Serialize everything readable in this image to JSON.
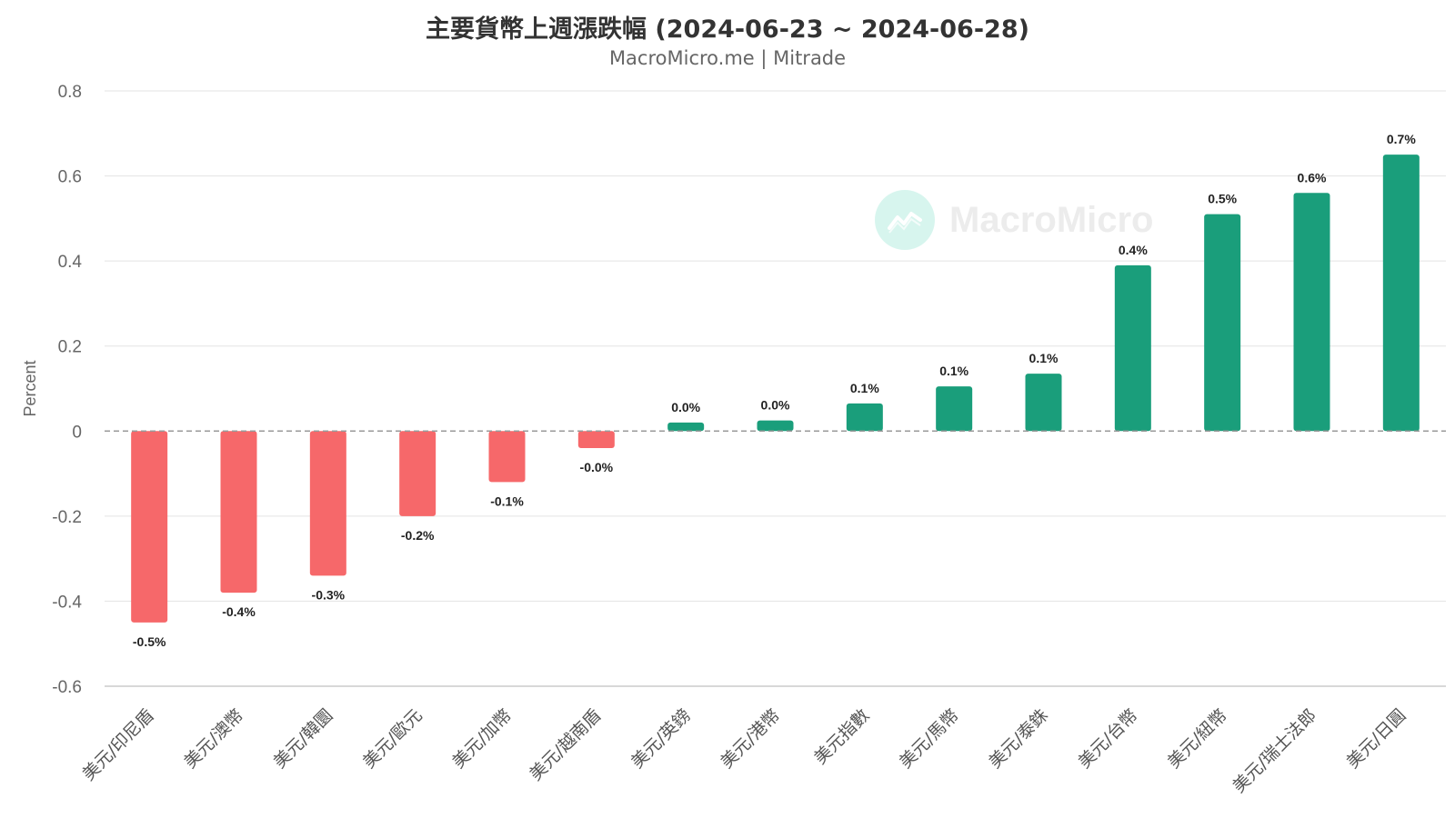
{
  "chart_data": {
    "type": "bar",
    "title": "主要貨幣上週漲跌幅 (2024-06-23 ~ 2024-06-28)",
    "subtitle": "MacroMicro.me | Mitrade",
    "ylabel": "Percent",
    "ylim": [
      -0.6,
      0.8
    ],
    "yticks": [
      0.8,
      0.6,
      0.4,
      0.2,
      0,
      -0.2,
      -0.4,
      -0.6
    ],
    "grid": true,
    "categories": [
      "美元/印尼盾",
      "美元/澳幣",
      "美元/韓圜",
      "美元/歐元",
      "美元/加幣",
      "美元/越南盾",
      "美元/英鎊",
      "美元/港幣",
      "美元指數",
      "美元/馬幣",
      "美元/泰銖",
      "美元/台幣",
      "美元/紐幣",
      "美元/瑞士法郎",
      "美元/日圓"
    ],
    "values": [
      -0.45,
      -0.38,
      -0.34,
      -0.2,
      -0.12,
      -0.04,
      0.02,
      0.025,
      0.065,
      0.105,
      0.135,
      0.39,
      0.51,
      0.56,
      0.65
    ],
    "data_labels": [
      "-0.5%",
      "-0.4%",
      "-0.3%",
      "-0.2%",
      "-0.1%",
      "-0.0%",
      "0.0%",
      "0.0%",
      "0.1%",
      "0.1%",
      "0.1%",
      "0.4%",
      "0.5%",
      "0.6%",
      "0.7%"
    ],
    "colors": {
      "positive": "#1a9e7b",
      "negative": "#f6686a",
      "grid": "#e3e3e3",
      "zero_line": "#999999"
    }
  },
  "watermark": {
    "text": "MacroMicro",
    "icon": "chart-logo-icon"
  }
}
